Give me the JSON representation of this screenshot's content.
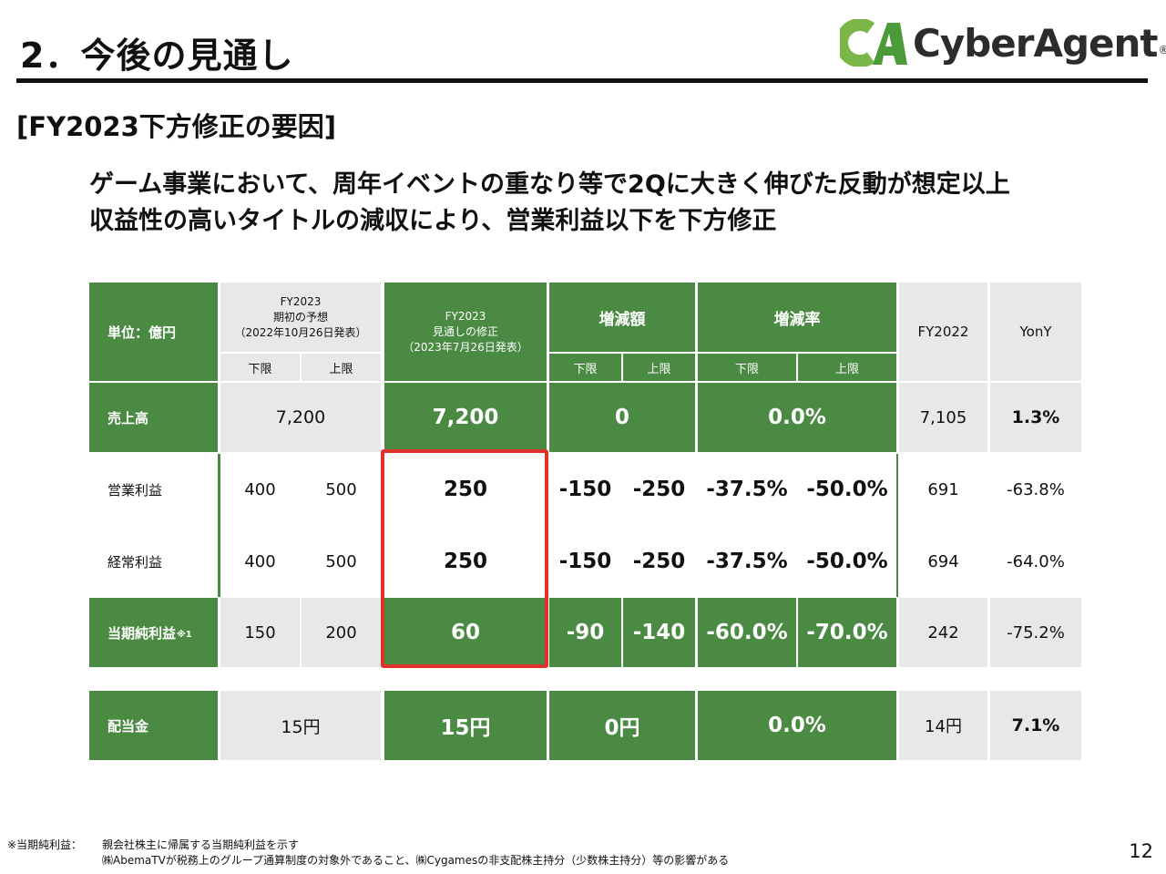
{
  "header": {
    "title": "2．今後の見通し",
    "logo_text": "CyberAgent",
    "logo_reg": "®"
  },
  "section": "[FY2023下方修正の要因]",
  "headline": {
    "line1": "ゲーム事業において、周年イベントの重なり等で2Qに大きく伸びた反動が想定以上",
    "line2": "収益性の高いタイトルの減収により、営業利益以下を下方修正"
  },
  "table": {
    "header": {
      "unit": "単位：億円",
      "initial": {
        "line1": "FY2023",
        "line2": "期初の予想",
        "line3": "（2022年10月26日発表）"
      },
      "revised": {
        "line1": "FY2023",
        "line2": "見通しの修正",
        "line3": "（2023年7月26日発表）"
      },
      "change_amount": "増減額",
      "change_rate": "増減率",
      "fy2022": "FY2022",
      "yony": "YonY",
      "lower": "下限",
      "upper": "上限"
    },
    "rows": [
      {
        "label": "売上高",
        "initial_single": "7,200",
        "revised": "7,200",
        "amount_single": "0",
        "rate_single": "0.0%",
        "fy2022": "7,105",
        "yony": "1.3%"
      },
      {
        "label": "営業利益",
        "initial_lower": "400",
        "initial_upper": "500",
        "revised": "250",
        "amount_lower": "-150",
        "amount_upper": "-250",
        "rate_lower": "-37.5%",
        "rate_upper": "-50.0%",
        "fy2022": "691",
        "yony": "-63.8%"
      },
      {
        "label": "経常利益",
        "initial_lower": "400",
        "initial_upper": "500",
        "revised": "250",
        "amount_lower": "-150",
        "amount_upper": "-250",
        "rate_lower": "-37.5%",
        "rate_upper": "-50.0%",
        "fy2022": "694",
        "yony": "-64.0%"
      },
      {
        "label": "当期純利益",
        "label_note": "※1",
        "initial_lower": "150",
        "initial_upper": "200",
        "revised": "60",
        "amount_lower": "-90",
        "amount_upper": "-140",
        "rate_lower": "-60.0%",
        "rate_upper": "-70.0%",
        "fy2022": "242",
        "yony": "-75.2%"
      }
    ],
    "dividend": {
      "label": "配当金",
      "initial_single": "15円",
      "revised": "15円",
      "amount_single": "0円",
      "rate_single": "0.0%",
      "fy2022": "14円",
      "yony": "7.1%"
    }
  },
  "footnote": {
    "label": "※当期純利益：",
    "line1": "親会社株主に帰属する当期純利益を示す",
    "line2": "㈱AbemaTVが税務上のグループ通算制度の対象外であること、㈱Cygamesの非支配株主持分（少数株主持分）等の影響がある"
  },
  "page_number": "12",
  "colors": {
    "green": "#4a8a43",
    "gray": "#e8e8e8",
    "highlight": "#e0322a",
    "logo_green": "#7ab648"
  }
}
